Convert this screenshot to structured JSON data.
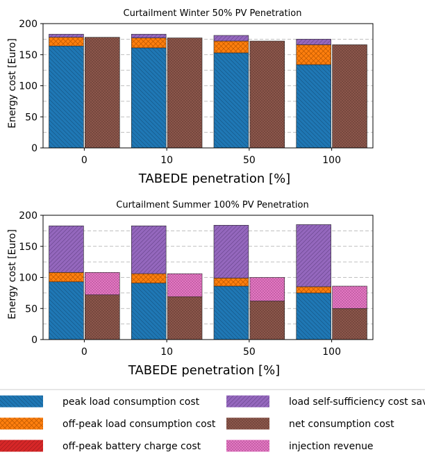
{
  "chart_data": [
    {
      "type": "bar",
      "title": "Curtailment Winter 50% PV Penetration",
      "xlabel": "TABEDE penetration [%]",
      "ylabel": "Energy cost [Euro]",
      "categories": [
        "0",
        "10",
        "50",
        "100"
      ],
      "ylim": [
        0,
        200
      ],
      "yticks": [
        0,
        50,
        100,
        150,
        200
      ],
      "grid": "horizontal dashed",
      "stack_left": [
        {
          "name": "peak load consumption cost",
          "values": [
            164,
            161,
            153,
            134
          ]
        },
        {
          "name": "off-peak load consumption cost",
          "values": [
            14,
            16,
            19,
            32
          ]
        },
        {
          "name": "off-peak battery charge cost",
          "values": [
            0,
            0,
            0,
            0
          ]
        },
        {
          "name": "load self-sufficiency cost savings",
          "values": [
            5,
            6,
            9,
            9
          ]
        }
      ],
      "stack_right": [
        {
          "name": "net consumption cost",
          "values": [
            178,
            177,
            172,
            166
          ]
        },
        {
          "name": "injection revenue",
          "values": [
            0,
            0,
            0,
            0
          ]
        }
      ]
    },
    {
      "type": "bar",
      "title": "Curtailment Summer 100% PV Penetration",
      "xlabel": "TABEDE penetration [%]",
      "ylabel": "Energy cost [Euro]",
      "categories": [
        "0",
        "10",
        "50",
        "100"
      ],
      "ylim": [
        0,
        200
      ],
      "yticks": [
        0,
        50,
        100,
        150,
        200
      ],
      "grid": "horizontal dashed",
      "stack_left": [
        {
          "name": "peak load consumption cost",
          "values": [
            93,
            91,
            86,
            75
          ]
        },
        {
          "name": "off-peak load consumption cost",
          "values": [
            15,
            15,
            13,
            10
          ]
        },
        {
          "name": "off-peak battery charge cost",
          "values": [
            0,
            0,
            0,
            0
          ]
        },
        {
          "name": "load self-sufficiency cost savings",
          "values": [
            75,
            77,
            85,
            100
          ]
        }
      ],
      "stack_right": [
        {
          "name": "net consumption cost",
          "values": [
            72,
            69,
            62,
            50
          ]
        },
        {
          "name": "injection revenue",
          "values": [
            36,
            37,
            38,
            36
          ]
        }
      ]
    }
  ],
  "legend": {
    "placement": "bottom",
    "items": [
      {
        "label": "peak load consumption cost",
        "color": "#1f77b4",
        "pattern": "diagonal-backslash"
      },
      {
        "label": "load self-sufficiency cost savings",
        "color": "#9467bd",
        "pattern": "diagonal-slash"
      },
      {
        "label": "off-peak load consumption cost",
        "color": "#ff7f0e",
        "pattern": "crosshatch"
      },
      {
        "label": "net consumption cost",
        "color": "#8c564b",
        "pattern": "dots"
      },
      {
        "label": "off-peak battery charge cost",
        "color": "#d62728",
        "pattern": "diagonal-slash"
      },
      {
        "label": "injection revenue",
        "color": "#e377c2",
        "pattern": "dots"
      }
    ]
  }
}
